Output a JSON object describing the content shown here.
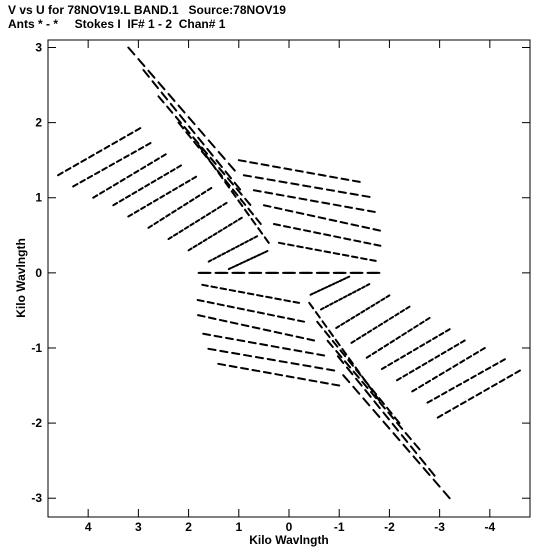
{
  "header": {
    "line1": "V vs U for 78NOV19.L BAND.1   Source:78NOV19",
    "line2": "Ants * - *     Stokes I  IF# 1 - 2  Chan# 1"
  },
  "chart_data": {
    "type": "scatter",
    "title": "V vs U for 78NOV19.L BAND.1   Source:78NOV19",
    "subtitle": "Ants * - *     Stokes I  IF# 1 - 2  Chan# 1",
    "xlabel": "Kilo Wavlngth",
    "ylabel": "Kilo Wavlngth",
    "x_axis_reversed": true,
    "xlim": [
      4.8,
      -4.8
    ],
    "ylim": [
      -3.25,
      3.1
    ],
    "xticks": [
      4,
      3,
      2,
      1,
      0,
      -1,
      -2,
      -3,
      -4
    ],
    "xtick_labels": [
      "4",
      "3",
      "2",
      "1",
      "0",
      "-1",
      "-2",
      "-3",
      "-4"
    ],
    "yticks": [
      3,
      2,
      1,
      0,
      -1,
      -2,
      -3
    ],
    "ytick_labels": [
      "3",
      "2",
      "1",
      "0",
      "-1",
      "-2",
      "-3"
    ],
    "grid": false,
    "marker": "short dash (uv track segment)",
    "series": [
      {
        "description": "uv coverage tracks",
        "tracks": [
          {
            "u0": 4.6,
            "v0": 1.3,
            "u1": 2.9,
            "v1": 1.95
          },
          {
            "u0": 4.3,
            "v0": 1.15,
            "u1": 2.7,
            "v1": 1.75
          },
          {
            "u0": 3.9,
            "v0": 1.0,
            "u1": 2.4,
            "v1": 1.6
          },
          {
            "u0": 3.5,
            "v0": 0.9,
            "u1": 2.1,
            "v1": 1.45
          },
          {
            "u0": 3.2,
            "v0": 0.75,
            "u1": 1.8,
            "v1": 1.3
          },
          {
            "u0": 2.8,
            "v0": 0.6,
            "u1": 1.5,
            "v1": 1.15
          },
          {
            "u0": 2.4,
            "v0": 0.45,
            "u1": 1.2,
            "v1": 0.95
          },
          {
            "u0": 2.0,
            "v0": 0.3,
            "u1": 0.9,
            "v1": 0.75
          },
          {
            "u0": 1.6,
            "v0": 0.15,
            "u1": 0.6,
            "v1": 0.5
          },
          {
            "u0": 1.2,
            "v0": 0.05,
            "u1": 0.4,
            "v1": 0.3
          },
          {
            "u0": 1.0,
            "v0": 1.5,
            "u1": -1.5,
            "v1": 1.2
          },
          {
            "u0": 0.9,
            "v0": 1.3,
            "u1": -1.7,
            "v1": 1.0
          },
          {
            "u0": 0.7,
            "v0": 1.1,
            "u1": -1.8,
            "v1": 0.8
          },
          {
            "u0": 0.5,
            "v0": 0.9,
            "u1": -1.9,
            "v1": 0.55
          },
          {
            "u0": 0.3,
            "v0": 0.65,
            "u1": -1.9,
            "v1": 0.35
          },
          {
            "u0": 0.2,
            "v0": 0.4,
            "u1": -1.8,
            "v1": 0.15
          },
          {
            "u0": 1.8,
            "v0": 0.0,
            "u1": -1.9,
            "v1": 0.0
          },
          {
            "u0": 3.2,
            "v0": 3.0,
            "u1": 1.0,
            "v1": 1.3
          },
          {
            "u0": 2.9,
            "v0": 2.7,
            "u1": 0.9,
            "v1": 1.05
          },
          {
            "u0": 2.6,
            "v0": 2.35,
            "u1": 0.7,
            "v1": 0.85
          },
          {
            "u0": 2.2,
            "v0": 2.0,
            "u1": 0.5,
            "v1": 0.6
          },
          {
            "u0": 1.8,
            "v0": 1.7,
            "u1": 0.35,
            "v1": 0.35
          },
          {
            "u0": -4.6,
            "v0": -1.3,
            "u1": -2.9,
            "v1": -1.95
          },
          {
            "u0": -4.3,
            "v0": -1.15,
            "u1": -2.7,
            "v1": -1.75
          },
          {
            "u0": -3.9,
            "v0": -1.0,
            "u1": -2.4,
            "v1": -1.6
          },
          {
            "u0": -3.5,
            "v0": -0.9,
            "u1": -2.1,
            "v1": -1.45
          },
          {
            "u0": -3.2,
            "v0": -0.75,
            "u1": -1.8,
            "v1": -1.3
          },
          {
            "u0": -2.8,
            "v0": -0.6,
            "u1": -1.5,
            "v1": -1.15
          },
          {
            "u0": -2.4,
            "v0": -0.45,
            "u1": -1.2,
            "v1": -0.95
          },
          {
            "u0": -2.0,
            "v0": -0.3,
            "u1": -0.9,
            "v1": -0.75
          },
          {
            "u0": -1.6,
            "v0": -0.15,
            "u1": -0.6,
            "v1": -0.5
          },
          {
            "u0": -1.2,
            "v0": -0.05,
            "u1": -0.4,
            "v1": -0.3
          },
          {
            "u0": -1.0,
            "v0": -1.5,
            "u1": 1.5,
            "v1": -1.2
          },
          {
            "u0": -0.9,
            "v0": -1.3,
            "u1": 1.7,
            "v1": -1.0
          },
          {
            "u0": -0.7,
            "v0": -1.1,
            "u1": 1.8,
            "v1": -0.8
          },
          {
            "u0": -0.5,
            "v0": -0.9,
            "u1": 1.9,
            "v1": -0.55
          },
          {
            "u0": -0.3,
            "v0": -0.65,
            "u1": 1.9,
            "v1": -0.35
          },
          {
            "u0": -0.2,
            "v0": -0.4,
            "u1": 1.8,
            "v1": -0.15
          },
          {
            "u0": -1.8,
            "v0": 0.0,
            "u1": 1.9,
            "v1": 0.0
          },
          {
            "u0": -3.2,
            "v0": -3.0,
            "u1": -1.0,
            "v1": -1.3
          },
          {
            "u0": -2.9,
            "v0": -2.7,
            "u1": -0.9,
            "v1": -1.05
          },
          {
            "u0": -2.6,
            "v0": -2.35,
            "u1": -0.7,
            "v1": -0.85
          },
          {
            "u0": -2.2,
            "v0": -2.0,
            "u1": -0.5,
            "v1": -0.6
          },
          {
            "u0": -1.8,
            "v0": -1.7,
            "u1": -0.35,
            "v1": -0.35
          }
        ]
      }
    ]
  }
}
